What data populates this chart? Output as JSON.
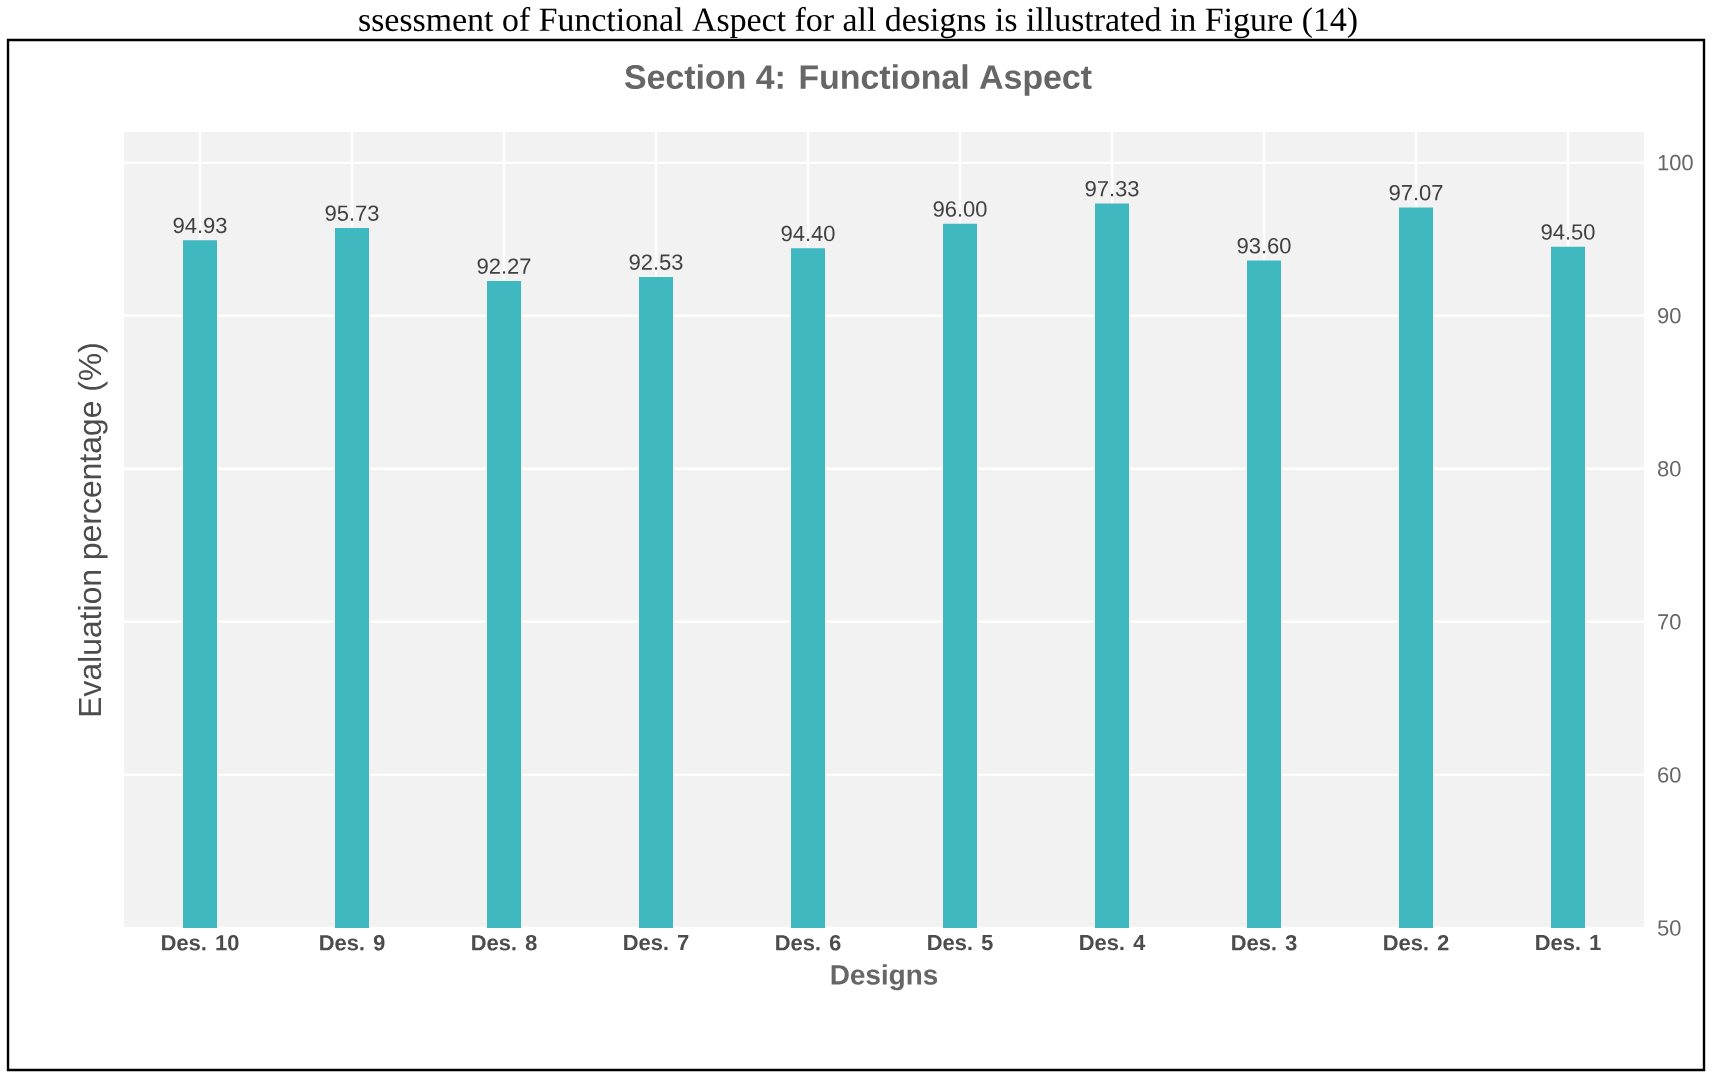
{
  "chart_data": {
    "type": "bar",
    "title": "Section 4: Functional Aspect",
    "xlabel": "Designs",
    "ylabel": "Evaluation percentage  (%)",
    "annotations": [
      "ssessment of Functional Aspect for all designs is illustrated in Figure (14)"
    ],
    "categories": [
      "Des. 10",
      "Des. 9",
      "Des. 8",
      "Des. 7",
      "Des. 6",
      "Des. 5",
      "Des. 4",
      "Des. 3",
      "Des. 2",
      "Des. 1"
    ],
    "values": [
      94.93,
      95.73,
      92.27,
      92.53,
      94.4,
      96.0,
      97.33,
      93.6,
      97.07,
      94.5
    ],
    "value_labels": [
      "94.93",
      "95.73",
      "92.27",
      "92.53",
      "94.40",
      "96.00",
      "97.33",
      "93.60",
      "97.07",
      "94.50"
    ],
    "color": "#3fb8c0",
    "ylim": [
      50,
      102
    ],
    "yticks": [
      50,
      60,
      70,
      80,
      90,
      100
    ],
    "grid": true
  }
}
